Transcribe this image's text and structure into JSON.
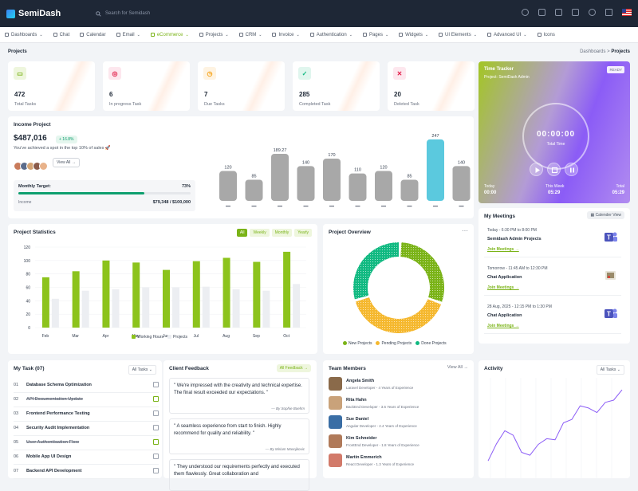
{
  "app": {
    "name": "SemiDash",
    "search_placeholder": "Search for Semidash"
  },
  "nav": [
    {
      "label": "Dashboards",
      "chev": true
    },
    {
      "label": "Chat",
      "chev": false
    },
    {
      "label": "Calendar",
      "chev": false
    },
    {
      "label": "Email",
      "chev": true
    },
    {
      "label": "eCommerce",
      "chev": true,
      "active": true
    },
    {
      "label": "Projects",
      "chev": true
    },
    {
      "label": "CRM",
      "chev": true
    },
    {
      "label": "Invoice",
      "chev": true
    },
    {
      "label": "Authentication",
      "chev": true
    },
    {
      "label": "Pages",
      "chev": true
    },
    {
      "label": "Widgets",
      "chev": true
    },
    {
      "label": "UI Elements",
      "chev": true
    },
    {
      "label": "Advanced UI",
      "chev": true
    },
    {
      "label": "Icons",
      "chev": false
    }
  ],
  "breadcrumb": {
    "title": "Projects",
    "parent": "Dashboards",
    "sep": ">",
    "current": "Projects"
  },
  "stats": [
    {
      "value": "472",
      "label": "Total Tasks",
      "icon": "clipboard-icon",
      "color": "#7ab317",
      "bg": "#eef6dd",
      "glyph": "▭"
    },
    {
      "value": "6",
      "label": "In progress Task",
      "icon": "target-icon",
      "color": "#e11d48",
      "bg": "#fde7ee",
      "glyph": "◎"
    },
    {
      "value": "7",
      "label": "Due Tasks",
      "icon": "clock-icon",
      "color": "#f59e0b",
      "bg": "#fef3e2",
      "glyph": "◷"
    },
    {
      "value": "285",
      "label": "Completed Task",
      "icon": "check-icon",
      "color": "#10b981",
      "bg": "#e0f6ee",
      "glyph": "✓"
    },
    {
      "value": "20",
      "label": "Deleted Task",
      "icon": "trash-icon",
      "color": "#e11d48",
      "bg": "#fde7ee",
      "glyph": "✕"
    }
  ],
  "income": {
    "title": "Income Project",
    "value": "$487,016",
    "badge": "+ 16.8%",
    "subtitle": "You've achieved a spot in the top 10% of sales 🚀",
    "view_all": "View All →",
    "target_label": "Monthly Target:",
    "target_pct": "73%",
    "target_fraction": 0.73,
    "income_label": "Income",
    "income_value": "$79,348 / $100,000"
  },
  "tracker": {
    "title": "Time Tracker",
    "project": "Project: SemiDash Admin",
    "badge": "READY",
    "time": "00:00:00",
    "time_label": "Total Time",
    "today_label": "Today",
    "today": "00:00",
    "week_label": "This Week",
    "week": "05:29",
    "total_label": "Total",
    "total": "05:29"
  },
  "project_stats": {
    "title": "Project Statistics",
    "tabs": [
      "All",
      "Weekly",
      "Monthly",
      "Yearly"
    ],
    "legend_working": "Working Hours",
    "legend_projects": "Projects"
  },
  "overview": {
    "title": "Project Overview",
    "more": "···",
    "legend": [
      {
        "name": "New Projects",
        "color": "#7ab317"
      },
      {
        "name": "Pending Projects",
        "color": "#f5b82e"
      },
      {
        "name": "Done Projects",
        "color": "#10b981"
      }
    ]
  },
  "meetings": {
    "title": "My Meetings",
    "button": "Calender View",
    "items": [
      {
        "time": "Today - 6:30 PM to 8:00 PM",
        "name": "Semidash Admin Projects",
        "link": "Join Meetings →",
        "icon": "teams-icon"
      },
      {
        "time": "Tomorrow - 11:45 AM to 12:30 PM",
        "name": "Chat Application",
        "link": "Join Meetings →",
        "icon": "meet-icon"
      },
      {
        "time": "28 Aug, 2025 - 12:15 PM to 1:30 PM",
        "name": "Chat Application",
        "link": "Join Meetings →",
        "icon": "teams-icon"
      }
    ]
  },
  "tasks": {
    "title": "My Task (07)",
    "filter": "All Tasks ⌄",
    "items": [
      {
        "n": "01",
        "name": "Database Schema Optimization",
        "done": false
      },
      {
        "n": "02",
        "name": "API Documentation Update",
        "done": true
      },
      {
        "n": "03",
        "name": "Frontend Performance Testing",
        "done": false
      },
      {
        "n": "04",
        "name": "Security Audit Implementation",
        "done": false
      },
      {
        "n": "05",
        "name": "User Authentication Flow",
        "done": true
      },
      {
        "n": "06",
        "name": "Mobile App UI Design",
        "done": false
      },
      {
        "n": "07",
        "name": "Backend API Development",
        "done": false
      }
    ]
  },
  "feedback": {
    "title": "Client Feedback",
    "button": "All Feedback →",
    "items": [
      {
        "text": "\" We're impressed with the creativity and technical expertise. The final result exceeded our expectations. \"",
        "author": "— By Sophie Boehm"
      },
      {
        "text": "\" A seamless experience from start to finish. Highly recommend for quality and reliability. \"",
        "author": "— By Miriam Masojkovic"
      },
      {
        "text": "\" They understood our requirements perfectly and executed them flawlessly. Great collaboration and",
        "author": ""
      }
    ]
  },
  "team": {
    "title": "Team Members",
    "view_all": "View All →",
    "items": [
      {
        "name": "Angela Smith",
        "role": "Laravel Developer - 4 Years of Experience"
      },
      {
        "name": "Rita Hahn",
        "role": "BackEnd Developer - 3.6 Years of Experience"
      },
      {
        "name": "Sue Daniel",
        "role": "Angular Developer - 2.4 Years of Experience"
      },
      {
        "name": "Kim Schneider",
        "role": "FrontEnd Developer - 1.8 Years of Experience"
      },
      {
        "name": "Martin Emmerich",
        "role": "React Developer - 1.3 Years of Experience"
      }
    ]
  },
  "activity": {
    "title": "Activity",
    "filter": "All Tasks ⌄"
  },
  "chart_data": [
    {
      "type": "bar",
      "title": "",
      "values": [
        120,
        85,
        189.27,
        140,
        170,
        110,
        120,
        85,
        247,
        140
      ],
      "highlight_index": 8,
      "colors": {
        "bar": "#a8a8a8",
        "highlight": "#5bc9de"
      }
    },
    {
      "type": "bar",
      "title": "Project Statistics",
      "categories": [
        "Feb",
        "Mar",
        "Apr",
        "May",
        "Jun",
        "Jul",
        "Aug",
        "Sep",
        "Oct"
      ],
      "ylim": [
        0,
        120
      ],
      "yticks": [
        0,
        20,
        40,
        60,
        80,
        100,
        120
      ],
      "series": [
        {
          "name": "Working Hours",
          "color": "#8cc31c",
          "values": [
            75,
            84,
            100,
            97,
            86,
            99,
            104,
            98,
            113
          ]
        },
        {
          "name": "Projects",
          "color": "#eceef2",
          "values": [
            43,
            55,
            57,
            60,
            60,
            61,
            57,
            55,
            65
          ]
        }
      ]
    },
    {
      "type": "pie",
      "title": "Project Overview",
      "donut": true,
      "slices": [
        {
          "name": "New Projects",
          "value": 30
        },
        {
          "name": "Pending Projects",
          "value": 40
        },
        {
          "name": "Done Projects",
          "value": 30
        }
      ]
    },
    {
      "type": "line",
      "title": "Activity",
      "values": [
        25,
        55,
        78,
        70,
        40,
        35,
        54,
        64,
        62,
        92,
        98,
        122,
        118,
        110,
        128,
        132,
        150
      ]
    }
  ]
}
